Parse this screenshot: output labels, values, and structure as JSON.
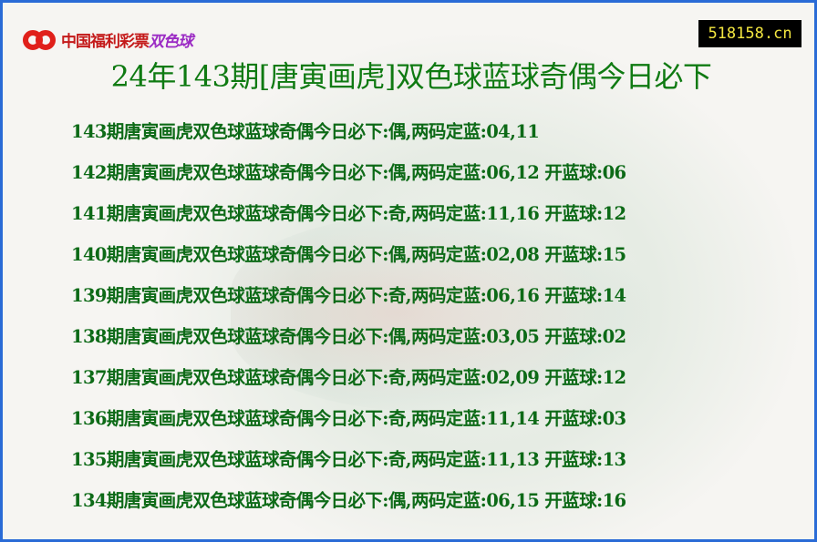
{
  "logo": {
    "text": "中国福利彩票",
    "accent": "双色球"
  },
  "site_badge": "518158.cn",
  "title": "24年143期[唐寅画虎]双色球蓝球奇偶今日必下",
  "rows": [
    {
      "main": "143期唐寅画虎双色球蓝球奇偶今日必下:偶,两码定蓝:04,11",
      "open": ""
    },
    {
      "main": "142期唐寅画虎双色球蓝球奇偶今日必下:偶,两码定蓝:06,12",
      "open": "开蓝球:06"
    },
    {
      "main": "141期唐寅画虎双色球蓝球奇偶今日必下:奇,两码定蓝:11,16",
      "open": "开蓝球:12"
    },
    {
      "main": "140期唐寅画虎双色球蓝球奇偶今日必下:偶,两码定蓝:02,08",
      "open": "开蓝球:15"
    },
    {
      "main": "139期唐寅画虎双色球蓝球奇偶今日必下:奇,两码定蓝:06,16",
      "open": "开蓝球:14"
    },
    {
      "main": "138期唐寅画虎双色球蓝球奇偶今日必下:偶,两码定蓝:03,05",
      "open": "开蓝球:02"
    },
    {
      "main": "137期唐寅画虎双色球蓝球奇偶今日必下:奇,两码定蓝:02,09",
      "open": "开蓝球:12"
    },
    {
      "main": "136期唐寅画虎双色球蓝球奇偶今日必下:奇,两码定蓝:11,14",
      "open": "开蓝球:03"
    },
    {
      "main": "135期唐寅画虎双色球蓝球奇偶今日必下:奇,两码定蓝:11,13",
      "open": "开蓝球:13"
    },
    {
      "main": "134期唐寅画虎双色球蓝球奇偶今日必下:偶,两码定蓝:06,15",
      "open": "开蓝球:16"
    }
  ],
  "colors": {
    "border": "#2a6bd6",
    "text": "#0d6a17",
    "badge_bg": "#000000",
    "badge_text": "#f3e640"
  }
}
